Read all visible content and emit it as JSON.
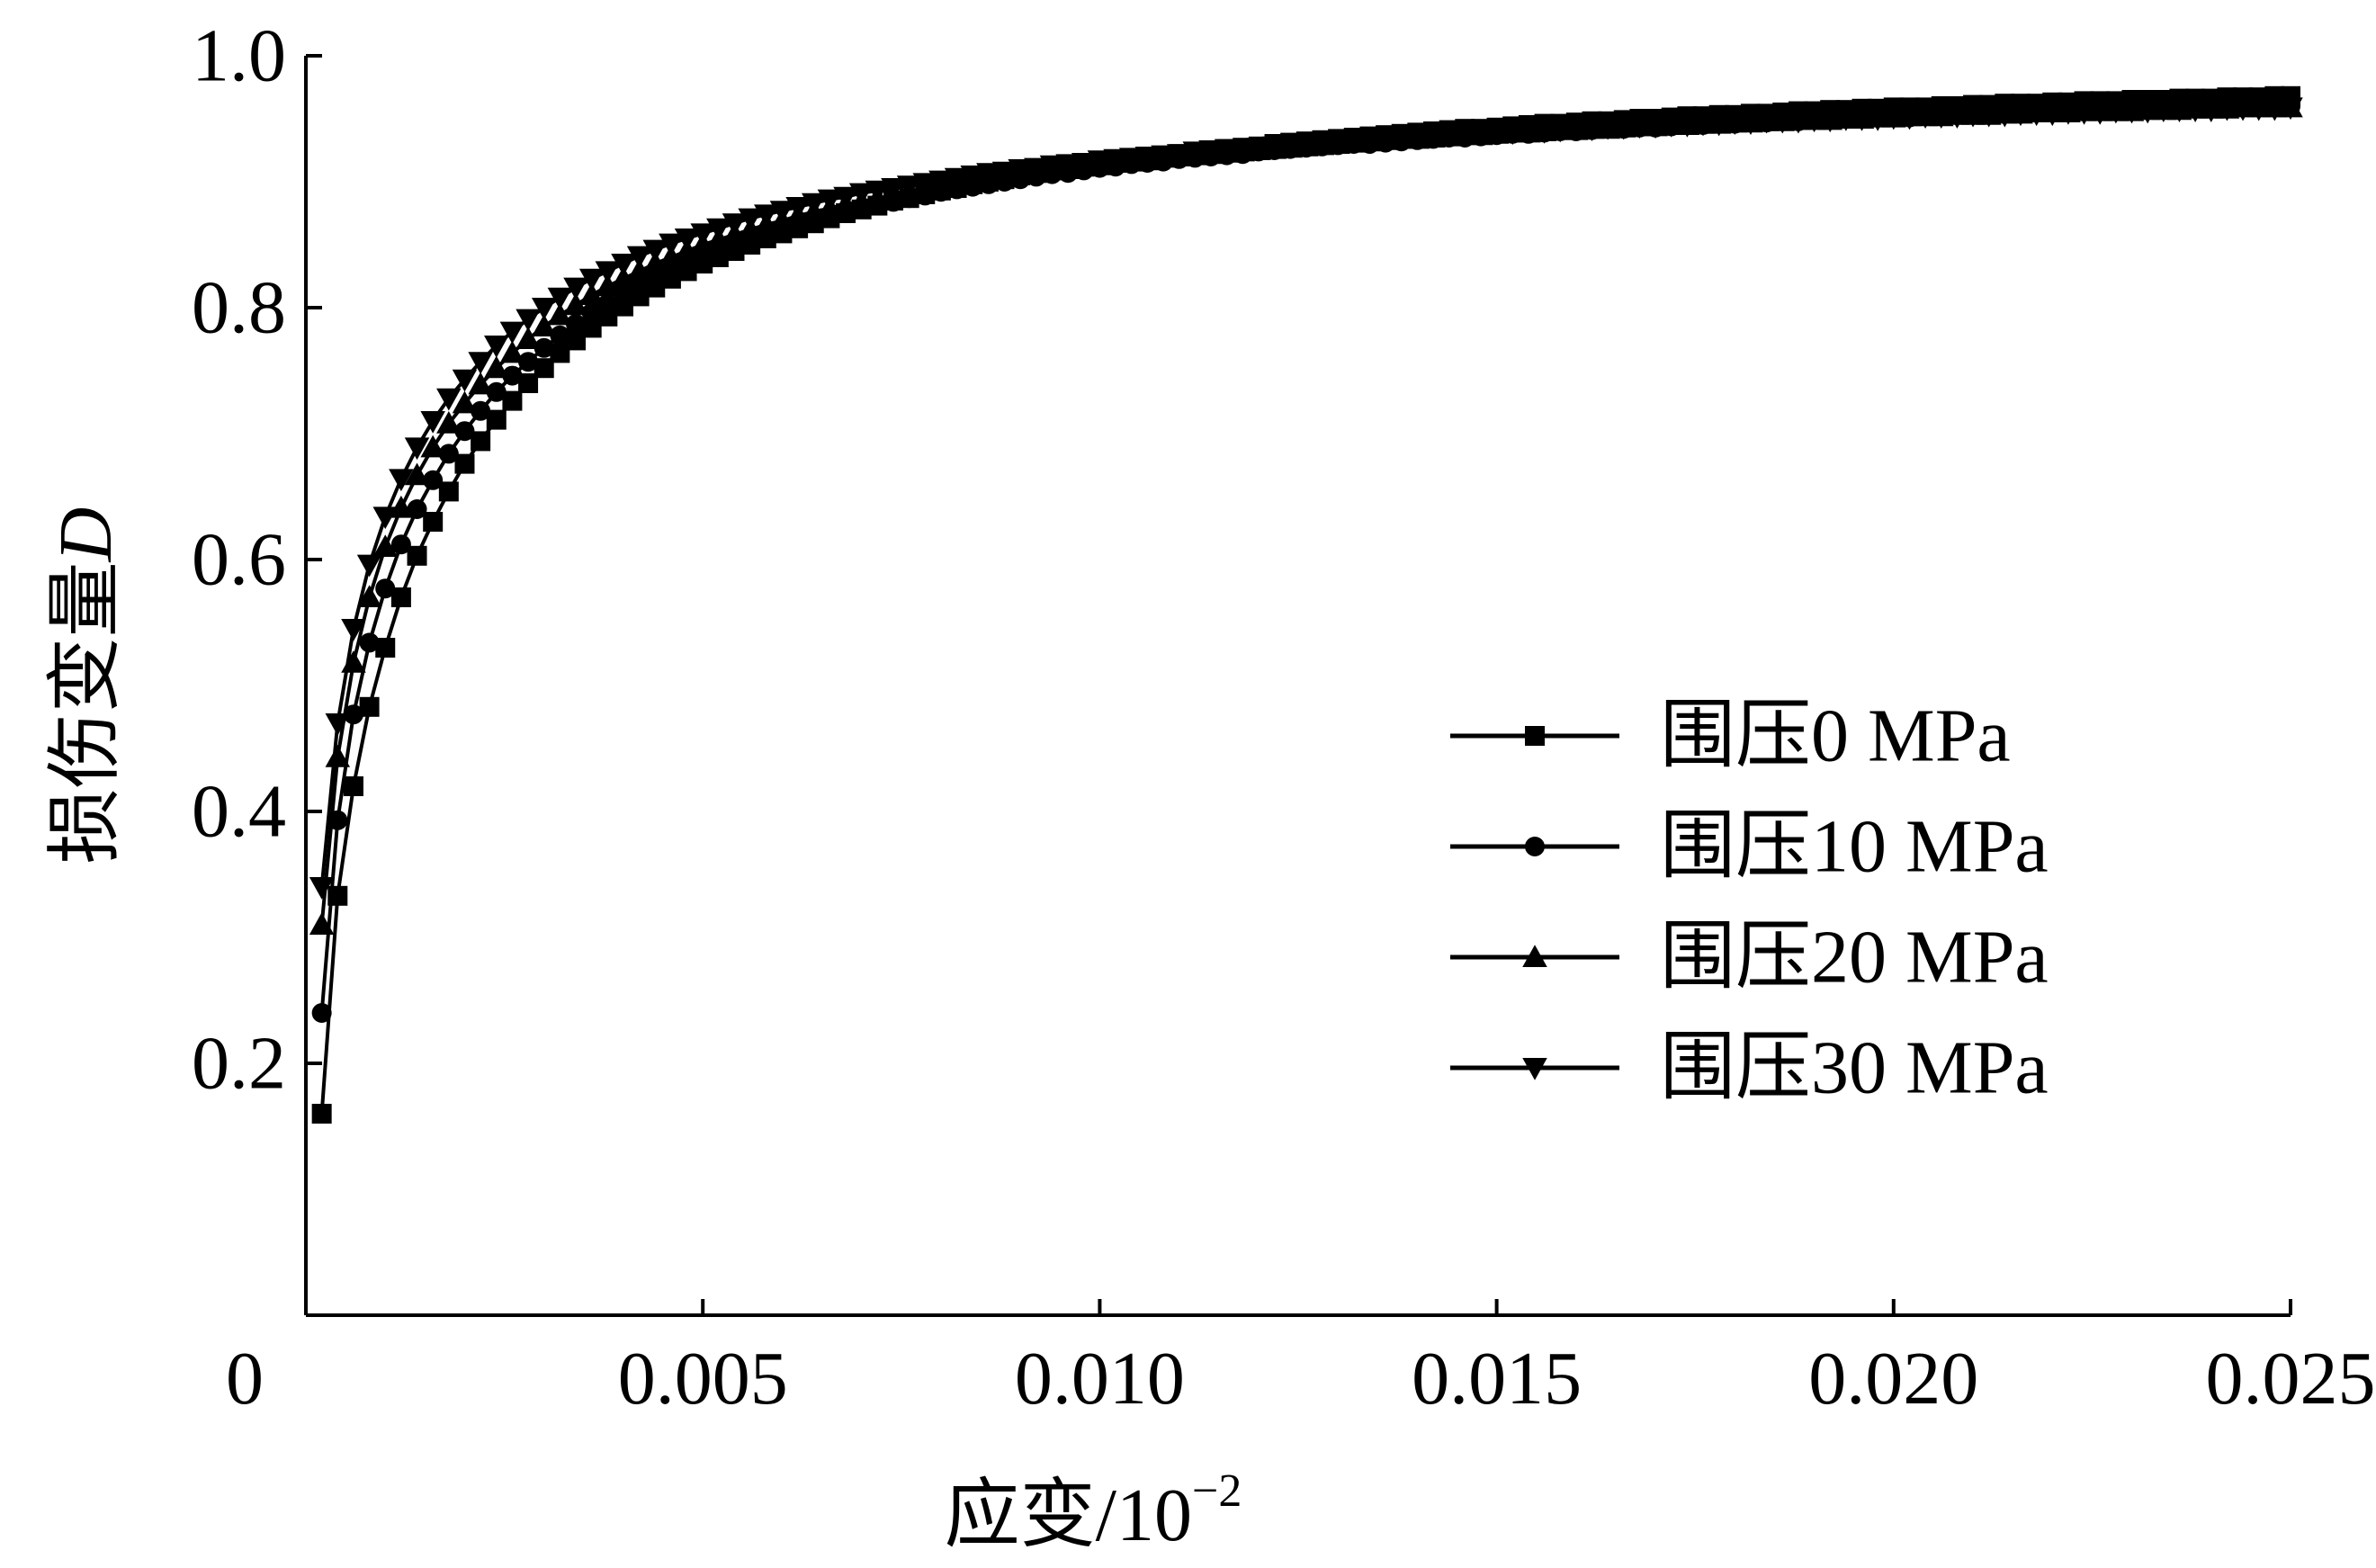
{
  "chart_data": {
    "type": "line",
    "title": "",
    "xlabel_prefix": "应变/10",
    "xlabel_exponent": "−2",
    "ylabel_prefix": "损伤变量",
    "ylabel_var": "D",
    "xlim": [
      0,
      0.025
    ],
    "ylim": [
      0,
      1.0
    ],
    "x_ticks": [
      0,
      0.005,
      0.01,
      0.015,
      0.02,
      0.025
    ],
    "x_tick_labels": [
      "0",
      "0.005",
      "0.010",
      "0.015",
      "0.020",
      "0.025"
    ],
    "y_ticks": [
      0.2,
      0.4,
      0.6,
      0.8,
      1.0
    ],
    "y_tick_labels": [
      "0.2",
      "0.4",
      "0.6",
      "0.8",
      "1.0"
    ],
    "grid": false,
    "legend_position": "right",
    "x": [
      0.0002,
      0.0004,
      0.0006,
      0.0008,
      0.001,
      0.0012,
      0.0014,
      0.0016,
      0.0018,
      0.002,
      0.0022,
      0.0024,
      0.0026,
      0.0028,
      0.003,
      0.0032,
      0.0034,
      0.0036,
      0.0038,
      0.004,
      0.0042,
      0.0044,
      0.0046,
      0.0048,
      0.005,
      0.0052,
      0.0054,
      0.0056,
      0.0058,
      0.006,
      0.0062,
      0.0064,
      0.0066,
      0.0068,
      0.007,
      0.0072,
      0.0074,
      0.0076,
      0.0078,
      0.008,
      0.0082,
      0.0084,
      0.0086,
      0.0088,
      0.009,
      0.0092,
      0.0094,
      0.0096,
      0.0098,
      0.01,
      0.0102,
      0.0104,
      0.0106,
      0.0108,
      0.011,
      0.0112,
      0.0114,
      0.0116,
      0.0118,
      0.012,
      0.0122,
      0.0124,
      0.0126,
      0.0128,
      0.013,
      0.0132,
      0.0134,
      0.0136,
      0.0138,
      0.014,
      0.0142,
      0.0144,
      0.0146,
      0.0148,
      0.015,
      0.0152,
      0.0154,
      0.0156,
      0.0158,
      0.016,
      0.0162,
      0.0164,
      0.0166,
      0.0168,
      0.017,
      0.0172,
      0.0174,
      0.0176,
      0.0178,
      0.018,
      0.0182,
      0.0184,
      0.0186,
      0.0188,
      0.019,
      0.0192,
      0.0194,
      0.0196,
      0.0198,
      0.02,
      0.0202,
      0.0204,
      0.0206,
      0.0208,
      0.021,
      0.0212,
      0.0214,
      0.0216,
      0.0218,
      0.022,
      0.0222,
      0.0224,
      0.0226,
      0.0228,
      0.023,
      0.0232,
      0.0234,
      0.0236,
      0.0238,
      0.024,
      0.0242,
      0.0244,
      0.0246,
      0.0248,
      0.025
    ],
    "series": [
      {
        "name": "围压0 MPa",
        "marker": "square",
        "values": [
          0.16,
          0.333,
          0.42,
          0.483,
          0.53,
          0.57,
          0.603,
          0.63,
          0.654,
          0.676,
          0.694,
          0.711,
          0.726,
          0.74,
          0.752,
          0.764,
          0.774,
          0.784,
          0.793,
          0.801,
          0.809,
          0.816,
          0.823,
          0.829,
          0.835,
          0.84,
          0.845,
          0.85,
          0.855,
          0.859,
          0.863,
          0.867,
          0.871,
          0.875,
          0.878,
          0.881,
          0.885,
          0.887,
          0.89,
          0.893,
          0.895,
          0.898,
          0.9,
          0.902,
          0.905,
          0.907,
          0.909,
          0.91,
          0.912,
          0.914,
          0.916,
          0.917,
          0.919,
          0.92,
          0.922,
          0.923,
          0.925,
          0.926,
          0.927,
          0.928,
          0.93,
          0.931,
          0.932,
          0.933,
          0.934,
          0.935,
          0.936,
          0.937,
          0.938,
          0.939,
          0.94,
          0.941,
          0.942,
          0.942,
          0.943,
          0.944,
          0.945,
          0.946,
          0.946,
          0.947,
          0.948,
          0.948,
          0.949,
          0.95,
          0.95,
          0.951,
          0.952,
          0.952,
          0.953,
          0.953,
          0.954,
          0.954,
          0.955,
          0.956,
          0.956,
          0.957,
          0.957,
          0.958,
          0.958,
          0.959,
          0.959,
          0.959,
          0.96,
          0.96,
          0.961,
          0.961,
          0.962,
          0.962,
          0.962,
          0.963,
          0.963,
          0.964,
          0.964,
          0.964,
          0.965,
          0.965,
          0.965,
          0.966,
          0.966,
          0.966,
          0.967,
          0.967,
          0.967,
          0.968,
          0.968
        ]
      },
      {
        "name": "围压10 MPa",
        "marker": "circle",
        "values": [
          0.24,
          0.393,
          0.477,
          0.534,
          0.577,
          0.612,
          0.64,
          0.663,
          0.684,
          0.702,
          0.718,
          0.733,
          0.746,
          0.757,
          0.768,
          0.778,
          0.787,
          0.796,
          0.803,
          0.811,
          0.817,
          0.824,
          0.83,
          0.835,
          0.84,
          0.845,
          0.85,
          0.854,
          0.858,
          0.862,
          0.866,
          0.869,
          0.873,
          0.876,
          0.879,
          0.882,
          0.884,
          0.887,
          0.889,
          0.892,
          0.894,
          0.896,
          0.898,
          0.9,
          0.902,
          0.904,
          0.906,
          0.907,
          0.909,
          0.911,
          0.912,
          0.914,
          0.915,
          0.916,
          0.918,
          0.919,
          0.92,
          0.921,
          0.922,
          0.924,
          0.925,
          0.926,
          0.927,
          0.928,
          0.929,
          0.93,
          0.93,
          0.931,
          0.932,
          0.933,
          0.934,
          0.935,
          0.935,
          0.936,
          0.937,
          0.938,
          0.938,
          0.939,
          0.94,
          0.94,
          0.941,
          0.942,
          0.942,
          0.943,
          0.943,
          0.944,
          0.945,
          0.945,
          0.946,
          0.946,
          0.947,
          0.947,
          0.948,
          0.948,
          0.949,
          0.949,
          0.95,
          0.95,
          0.951,
          0.951,
          0.951,
          0.952,
          0.952,
          0.953,
          0.953,
          0.954,
          0.954,
          0.954,
          0.955,
          0.955,
          0.955,
          0.956,
          0.956,
          0.956,
          0.957,
          0.957,
          0.957,
          0.958,
          0.958,
          0.958,
          0.959,
          0.959,
          0.959,
          0.96,
          0.96
        ]
      },
      {
        "name": "围压20 MPa",
        "marker": "triangle-up",
        "values": [
          0.31,
          0.443,
          0.518,
          0.57,
          0.61,
          0.641,
          0.667,
          0.689,
          0.708,
          0.724,
          0.739,
          0.752,
          0.764,
          0.775,
          0.785,
          0.794,
          0.802,
          0.81,
          0.817,
          0.823,
          0.829,
          0.835,
          0.84,
          0.845,
          0.85,
          0.854,
          0.858,
          0.862,
          0.866,
          0.869,
          0.873,
          0.876,
          0.879,
          0.882,
          0.884,
          0.887,
          0.889,
          0.892,
          0.894,
          0.896,
          0.898,
          0.9,
          0.902,
          0.904,
          0.906,
          0.907,
          0.909,
          0.91,
          0.912,
          0.913,
          0.915,
          0.916,
          0.917,
          0.919,
          0.92,
          0.921,
          0.922,
          0.923,
          0.924,
          0.925,
          0.926,
          0.927,
          0.928,
          0.929,
          0.93,
          0.931,
          0.932,
          0.933,
          0.934,
          0.934,
          0.935,
          0.936,
          0.937,
          0.937,
          0.938,
          0.939,
          0.939,
          0.94,
          0.941,
          0.941,
          0.942,
          0.942,
          0.943,
          0.944,
          0.944,
          0.945,
          0.945,
          0.946,
          0.946,
          0.947,
          0.947,
          0.948,
          0.948,
          0.949,
          0.949,
          0.949,
          0.95,
          0.95,
          0.951,
          0.951,
          0.952,
          0.952,
          0.952,
          0.953,
          0.953,
          0.953,
          0.954,
          0.954,
          0.955,
          0.955,
          0.955,
          0.956,
          0.956,
          0.956,
          0.956,
          0.957,
          0.957,
          0.957,
          0.958,
          0.958,
          0.958,
          0.959,
          0.959,
          0.959,
          0.959
        ]
      },
      {
        "name": "围压30 MPa",
        "marker": "triangle-down",
        "values": [
          0.34,
          0.47,
          0.545,
          0.596,
          0.634,
          0.664,
          0.689,
          0.71,
          0.728,
          0.743,
          0.757,
          0.77,
          0.781,
          0.791,
          0.8,
          0.808,
          0.816,
          0.823,
          0.829,
          0.835,
          0.841,
          0.846,
          0.851,
          0.855,
          0.859,
          0.863,
          0.867,
          0.871,
          0.874,
          0.877,
          0.88,
          0.883,
          0.886,
          0.888,
          0.891,
          0.893,
          0.895,
          0.897,
          0.899,
          0.901,
          0.903,
          0.905,
          0.907,
          0.908,
          0.91,
          0.911,
          0.913,
          0.914,
          0.915,
          0.917,
          0.918,
          0.919,
          0.92,
          0.921,
          0.922,
          0.924,
          0.925,
          0.926,
          0.926,
          0.927,
          0.928,
          0.929,
          0.93,
          0.931,
          0.932,
          0.932,
          0.933,
          0.934,
          0.935,
          0.935,
          0.936,
          0.937,
          0.937,
          0.938,
          0.939,
          0.939,
          0.94,
          0.94,
          0.941,
          0.942,
          0.942,
          0.943,
          0.943,
          0.944,
          0.944,
          0.945,
          0.945,
          0.946,
          0.946,
          0.947,
          0.947,
          0.948,
          0.948,
          0.948,
          0.949,
          0.949,
          0.95,
          0.95,
          0.95,
          0.951,
          0.951,
          0.952,
          0.952,
          0.952,
          0.953,
          0.953,
          0.953,
          0.954,
          0.954,
          0.954,
          0.955,
          0.955,
          0.955,
          0.956,
          0.956,
          0.956,
          0.957,
          0.957,
          0.957,
          0.957,
          0.958,
          0.958,
          0.958,
          0.958,
          0.959
        ]
      }
    ]
  },
  "colors": {
    "ink": "#000000",
    "background": "#ffffff"
  }
}
